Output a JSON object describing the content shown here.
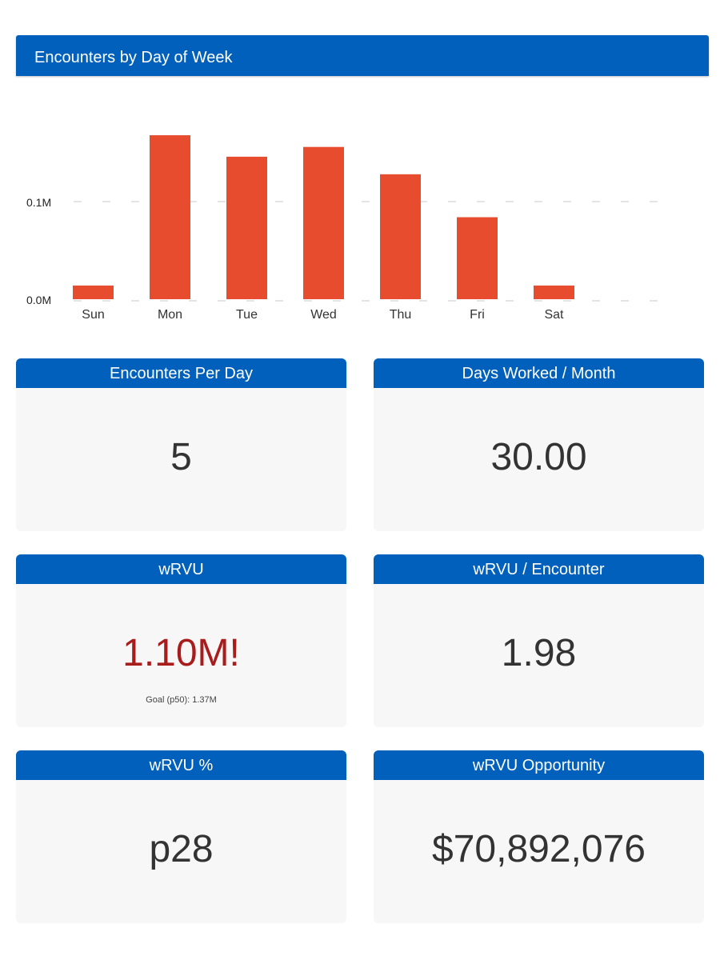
{
  "chart_title": "Encounters by Day of Week",
  "chart_data": {
    "type": "bar",
    "title": "Encounters by Day of Week",
    "categories": [
      "Sun",
      "Mon",
      "Tue",
      "Wed",
      "Thu",
      "Fri",
      "Sat"
    ],
    "values": [
      0.014,
      0.168,
      0.146,
      0.156,
      0.128,
      0.084,
      0.014
    ],
    "unit": "M",
    "yticks": [
      0.0,
      0.1
    ],
    "ytick_labels": [
      "0.0M",
      "0.1M"
    ],
    "ylim": [
      0.0,
      0.18
    ],
    "grid": true,
    "bar_color": "#e84c2e",
    "grid_color": "#c8c8c8"
  },
  "cards": {
    "encounters_per_day": {
      "title": "Encounters Per Day",
      "value": "5"
    },
    "days_worked": {
      "title": "Days Worked / Month",
      "value": "30.00"
    },
    "wrvu": {
      "title": "wRVU",
      "value": "1.10M!",
      "sub": "Goal (p50): 1.37M"
    },
    "wrvu_encounter": {
      "title": "wRVU / Encounter",
      "value": "1.98"
    },
    "wrvu_pct": {
      "title": "wRVU %",
      "value": "p28"
    },
    "wrvu_opportunity": {
      "title": "wRVU Opportunity",
      "value": "$70,892,076"
    }
  },
  "colors": {
    "header_blue": "#0160bb",
    "card_bg": "#f7f7f7",
    "alert_red": "#a91c1c"
  }
}
